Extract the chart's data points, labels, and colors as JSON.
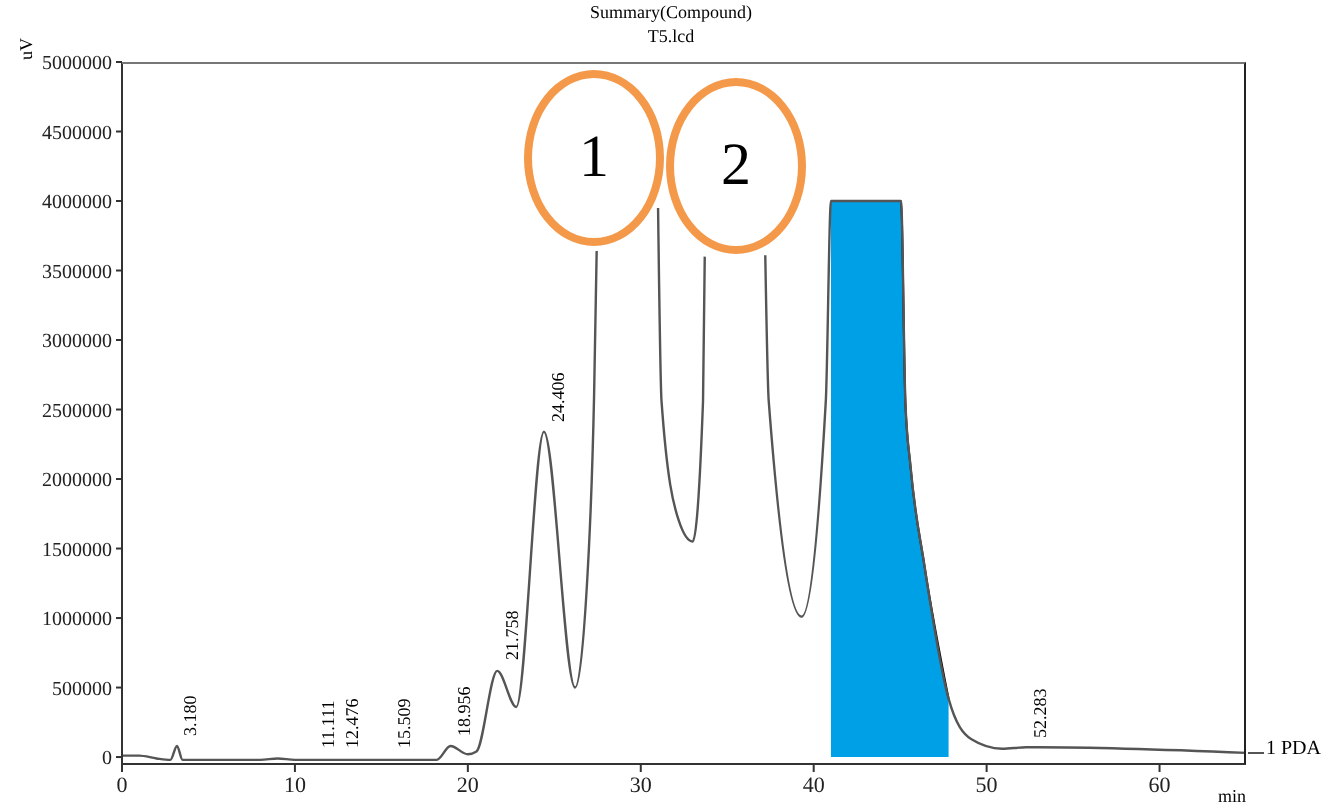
{
  "chart_data": {
    "type": "line",
    "title": "Summary(Compound)",
    "subtitle": "T5.lcd",
    "xlabel": "min",
    "ylabel": "uV",
    "xlim": [
      0,
      65
    ],
    "xticks": [
      0,
      10,
      20,
      30,
      40,
      50,
      60
    ],
    "ylim": [
      -50000,
      5000000
    ],
    "yticks": [
      0,
      500000,
      1000000,
      1500000,
      2000000,
      2500000,
      3000000,
      3500000,
      4000000,
      4500000,
      5000000
    ],
    "grid": false,
    "marker": "none",
    "series": [
      {
        "type": "area",
        "color": "#00a0e6",
        "x": [
          41,
          45.05,
          45.3,
          45.6,
          46.4,
          47.8
        ],
        "values": [
          4000000,
          4000000,
          2560000,
          2090000,
          1380000,
          420000
        ]
      },
      {
        "color": "#555555",
        "x": [
          0,
          1,
          2,
          2.8,
          3.18,
          3.5,
          4,
          8,
          9,
          10,
          17,
          18.2,
          19,
          20,
          20.5,
          21.7,
          22.8,
          24.4,
          26.2,
          27,
          27.3,
          27.45,
          28,
          31,
          31.2,
          32.2,
          33,
          33.6,
          33.7,
          35,
          37.2,
          37.4,
          39.3,
          40.7,
          41,
          45.05,
          45.3,
          45.6,
          46.4,
          47.8,
          49.1,
          50.9,
          52.3,
          53,
          65
        ],
        "values": [
          10000,
          10000,
          -10000,
          -20000,
          80000,
          -20000,
          -20000,
          -20000,
          -10000,
          -20000,
          -20000,
          -20000,
          80000,
          20000,
          40000,
          620000,
          360000,
          2340000,
          500000,
          1500000,
          2600000,
          3640000,
          null,
          3950000,
          2560000,
          1700000,
          1550000,
          2560000,
          3600000,
          null,
          3610000,
          2560000,
          1010000,
          2560000,
          4000000,
          4000000,
          2560000,
          2090000,
          1380000,
          420000,
          130000,
          60000,
          70000,
          70000,
          30000
        ]
      }
    ],
    "annotations": [
      "1",
      "2",
      {
        "text": "3.180",
        "x": 3.18,
        "y": 80000
      },
      {
        "text": "11.111",
        "x": 11.111,
        "y": 0
      },
      {
        "text": "12.476",
        "x": 12.476,
        "y": 0
      },
      {
        "text": "15.509",
        "x": 15.509,
        "y": 0
      },
      {
        "text": "18.956",
        "x": 18.956,
        "y": 80000
      },
      {
        "text": "21.758",
        "x": 21.758,
        "y": 620000
      },
      {
        "text": "24.406",
        "x": 24.406,
        "y": 2340000
      },
      {
        "text": "52.283",
        "x": 52.283,
        "y": 70000
      },
      "1 PDA"
    ]
  }
}
